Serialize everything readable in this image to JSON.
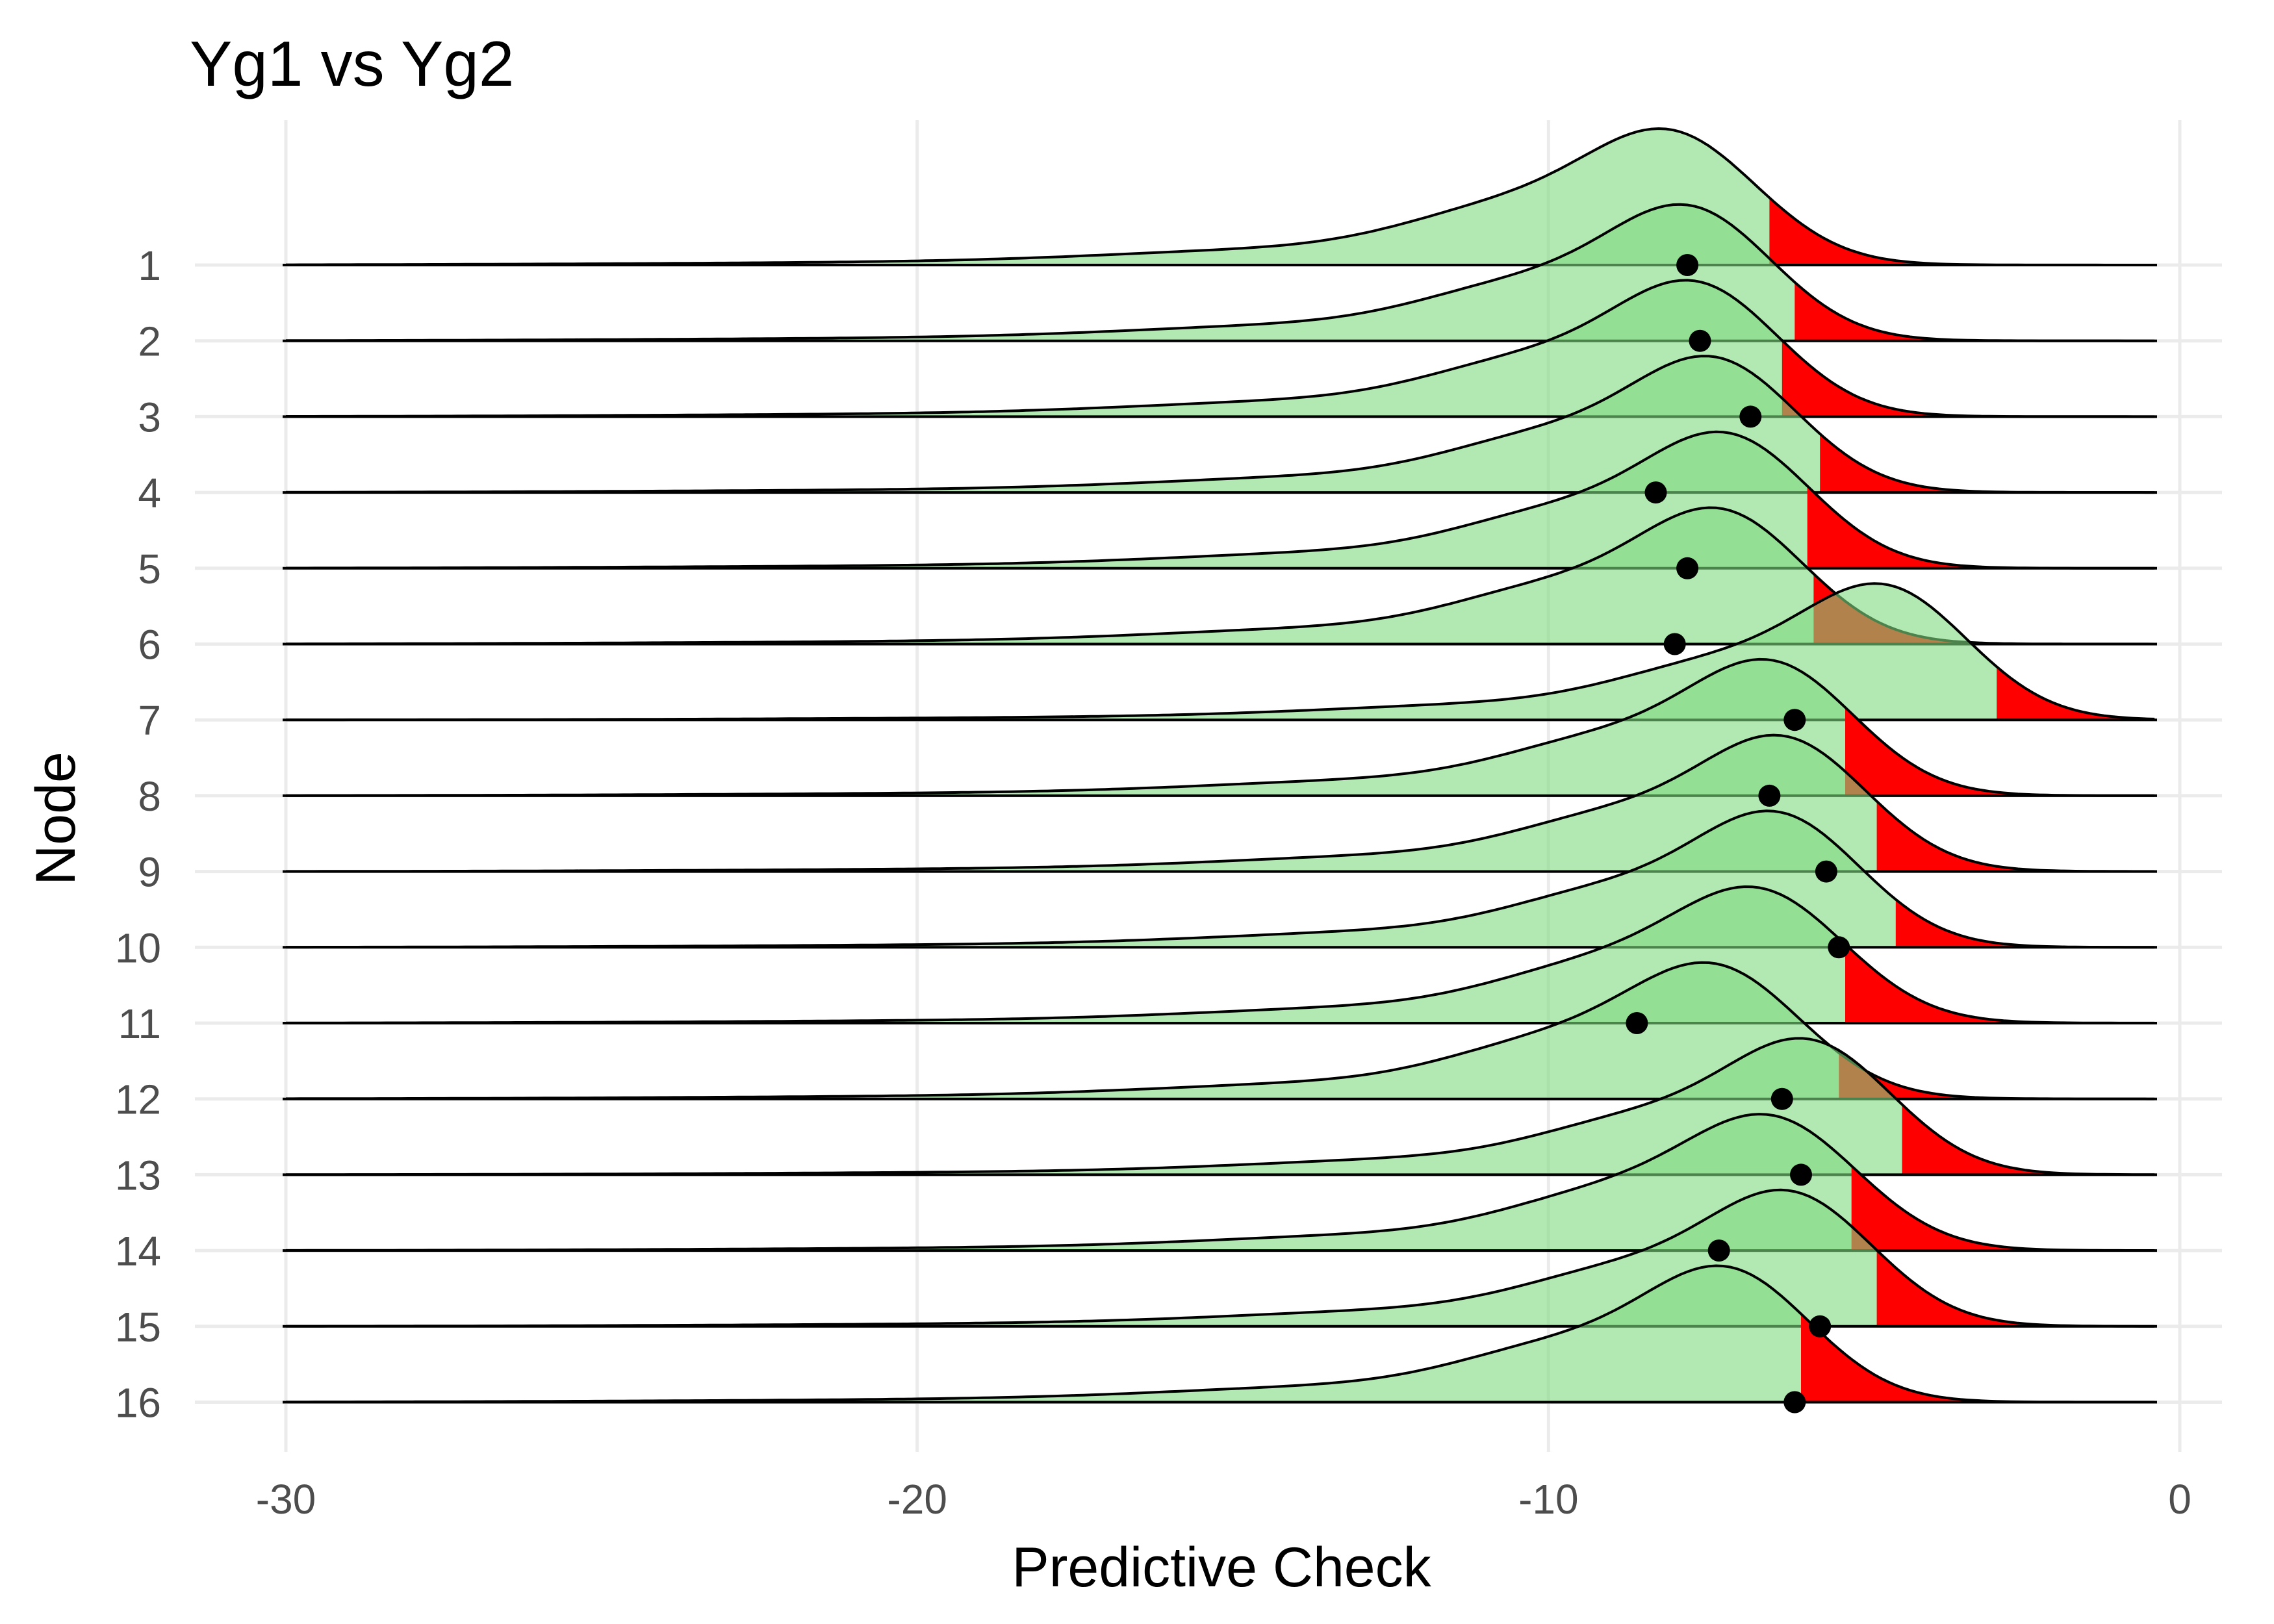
{
  "chart_data": {
    "type": "ridgeline",
    "title": "Yg1 vs Yg2",
    "xlabel": "Predictive Check",
    "ylabel": "Node",
    "xlim": [
      -30,
      0
    ],
    "xticks": [
      -30,
      -20,
      -10,
      0
    ],
    "xtick_labels": [
      "-30",
      "-20",
      "-10",
      "0"
    ],
    "grid": true,
    "colors": {
      "density": "#7fd87f",
      "tail": "#ff0000",
      "tail_overlap": "#a8874e",
      "point": "#000000",
      "line": "#000000"
    },
    "series": [
      {
        "name": "1",
        "mode": -8.0,
        "sd": 1.35,
        "tail_start": -6.5,
        "observed": -7.8,
        "height": 1.0
      },
      {
        "name": "2",
        "mode": -7.7,
        "sd": 1.3,
        "tail_start": -6.1,
        "observed": -7.6,
        "height": 1.0
      },
      {
        "name": "3",
        "mode": -7.6,
        "sd": 1.3,
        "tail_start": -6.3,
        "observed": -6.8,
        "height": 1.0
      },
      {
        "name": "4",
        "mode": -7.3,
        "sd": 1.3,
        "tail_start": -5.7,
        "observed": -8.3,
        "height": 1.0
      },
      {
        "name": "5",
        "mode": -7.1,
        "sd": 1.3,
        "tail_start": -5.9,
        "observed": -7.8,
        "height": 1.0
      },
      {
        "name": "6",
        "mode": -7.2,
        "sd": 1.3,
        "tail_start": -5.8,
        "observed": -8.0,
        "height": 1.0
      },
      {
        "name": "7",
        "mode": -4.6,
        "sd": 1.3,
        "tail_start": -2.9,
        "observed": -6.1,
        "height": 1.0
      },
      {
        "name": "8",
        "mode": -6.4,
        "sd": 1.3,
        "tail_start": -5.3,
        "observed": -6.5,
        "height": 1.0
      },
      {
        "name": "9",
        "mode": -6.2,
        "sd": 1.3,
        "tail_start": -4.8,
        "observed": -5.6,
        "height": 1.0
      },
      {
        "name": "10",
        "mode": -6.3,
        "sd": 1.3,
        "tail_start": -4.5,
        "observed": -5.4,
        "height": 1.0
      },
      {
        "name": "11",
        "mode": -6.6,
        "sd": 1.35,
        "tail_start": -5.3,
        "observed": -8.6,
        "height": 1.0
      },
      {
        "name": "12",
        "mode": -7.3,
        "sd": 1.35,
        "tail_start": -5.4,
        "observed": -6.3,
        "height": 1.0
      },
      {
        "name": "13",
        "mode": -5.8,
        "sd": 1.3,
        "tail_start": -4.4,
        "observed": -6.0,
        "height": 1.0
      },
      {
        "name": "14",
        "mode": -6.4,
        "sd": 1.35,
        "tail_start": -5.2,
        "observed": -7.3,
        "height": 1.0
      },
      {
        "name": "15",
        "mode": -6.1,
        "sd": 1.3,
        "tail_start": -4.8,
        "observed": -5.7,
        "height": 1.0
      },
      {
        "name": "16",
        "mode": -7.1,
        "sd": 1.3,
        "tail_start": -6.0,
        "observed": -6.1,
        "height": 1.0
      }
    ]
  }
}
